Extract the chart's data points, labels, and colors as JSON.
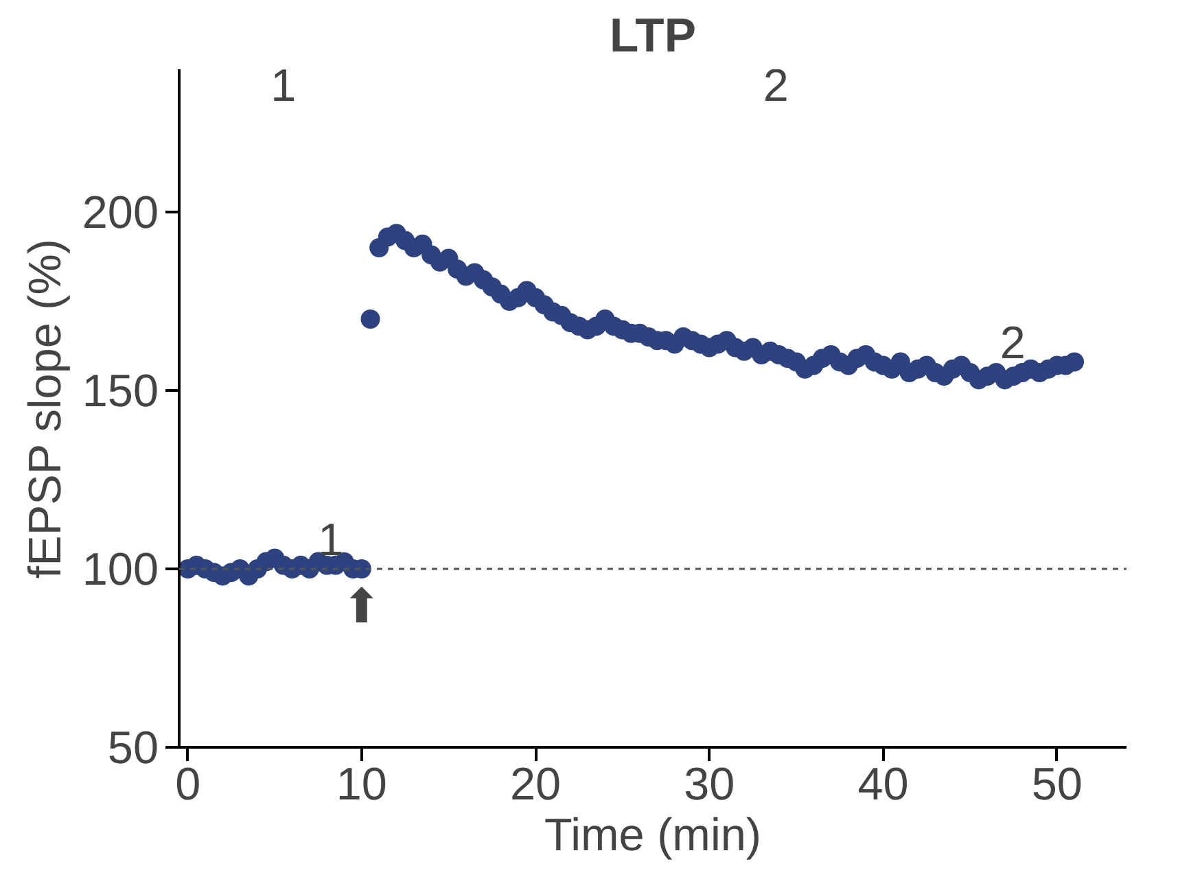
{
  "chart_data": {
    "type": "scatter",
    "title": "LTP",
    "xlabel": "Time (min)",
    "ylabel": "fEPSP slope (%)",
    "marker": "circle",
    "grid": false,
    "xlim": [
      -0.5,
      54
    ],
    "ylim": [
      50,
      240
    ],
    "xticks": [
      0,
      10,
      20,
      30,
      40,
      50
    ],
    "yticks": [
      50,
      100,
      150,
      200
    ],
    "series": [
      {
        "color": "#2e4280",
        "x": [
          0,
          0.5,
          1,
          1.5,
          2,
          2.5,
          3,
          3.5,
          4,
          4.5,
          5,
          5.5,
          6,
          6.5,
          7,
          7.5,
          8,
          8.5,
          9,
          9.5,
          10,
          10.5,
          11,
          11.5,
          12,
          12.5,
          13,
          13.5,
          14,
          14.5,
          15,
          15.5,
          16,
          16.5,
          17,
          17.5,
          18,
          18.5,
          19,
          19.5,
          20,
          20.5,
          21,
          21.5,
          22,
          22.5,
          23,
          23.5,
          24,
          24.5,
          25,
          25.5,
          26,
          26.5,
          27,
          27.5,
          28,
          28.5,
          29,
          29.5,
          30,
          30.5,
          31,
          31.5,
          32,
          32.5,
          33,
          33.5,
          34,
          34.5,
          35,
          35.5,
          36,
          36.5,
          37,
          37.5,
          38,
          38.5,
          39,
          39.5,
          40,
          40.5,
          41,
          41.5,
          42,
          42.5,
          43,
          43.5,
          44,
          44.5,
          45,
          45.5,
          46,
          46.5,
          47,
          47.5,
          48,
          48.5,
          49,
          49.5,
          50,
          50.5,
          51
        ],
        "values": [
          100,
          101,
          100,
          99,
          98,
          99,
          100,
          98,
          100,
          102,
          103,
          101,
          100,
          101,
          100,
          102,
          101,
          101,
          102,
          100,
          100,
          170,
          190,
          193,
          194,
          192,
          190,
          191,
          188,
          186,
          187,
          184,
          182,
          183,
          181,
          179,
          177,
          175,
          176,
          178,
          176,
          174,
          172,
          171,
          169,
          168,
          167,
          168,
          170,
          168,
          167,
          166,
          166,
          165,
          164,
          164,
          163,
          165,
          164,
          163,
          162,
          163,
          164,
          162,
          161,
          162,
          160,
          161,
          160,
          159,
          158,
          156,
          157,
          159,
          160,
          158,
          157,
          159,
          160,
          158,
          157,
          156,
          158,
          155,
          156,
          157,
          155,
          154,
          156,
          157,
          155,
          153,
          154,
          155,
          153,
          154,
          155,
          156,
          155,
          156,
          157,
          157,
          158
        ]
      }
    ],
    "ref_lines": [
      {
        "axis": "y",
        "value": 100,
        "line_style": "dashed",
        "color": "#555555"
      }
    ],
    "annotations": [
      "1",
      "2",
      "1",
      "2",
      {
        "text": "⬆",
        "x": 10,
        "y": 100
      }
    ]
  }
}
